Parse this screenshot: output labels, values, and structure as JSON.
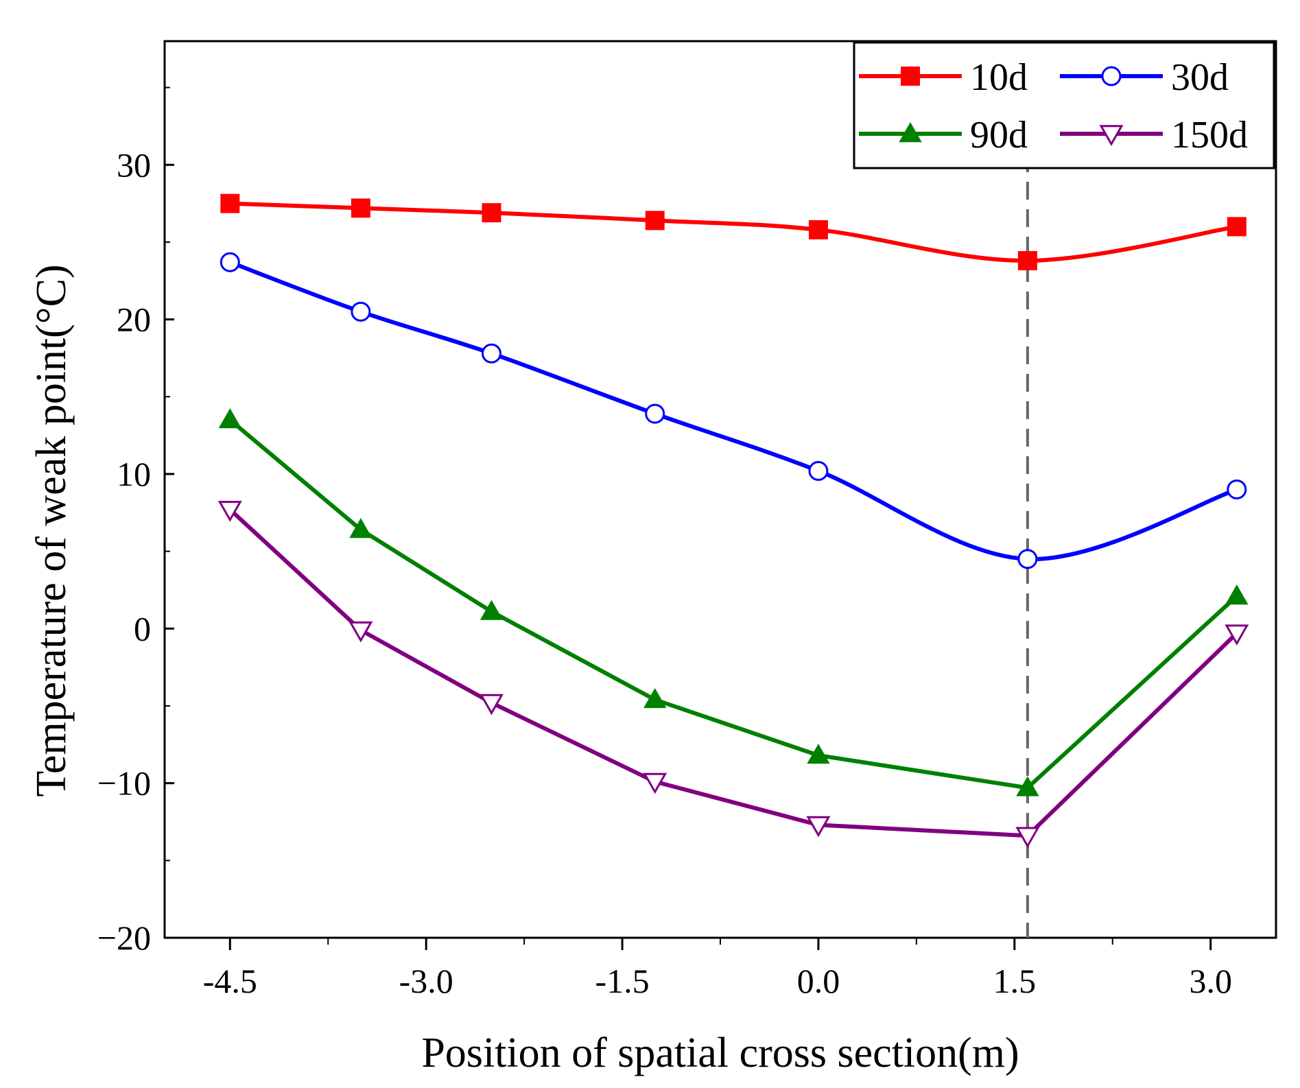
{
  "chart_data": {
    "type": "line",
    "xlabel": "Position of spatial cross section(m)",
    "ylabel": "Temperature of weak point(°C)",
    "xlim": [
      -5.0,
      3.5
    ],
    "ylim": [
      -20,
      38
    ],
    "x_ticks": [
      -4.5,
      -3.0,
      -1.5,
      0.0,
      1.5,
      3.0
    ],
    "x_tick_labels": [
      "-4.5",
      "-3.0",
      "-1.5",
      "0.0",
      "1.5",
      "3.0"
    ],
    "y_ticks": [
      -20,
      -10,
      0,
      10,
      20,
      30
    ],
    "y_tick_labels": [
      "−20",
      "−10",
      "0",
      "10",
      "20",
      "30"
    ],
    "reference_line_x": 1.6,
    "legend_position": "top-right",
    "series": [
      {
        "name": "10d",
        "color": "#ff0000",
        "marker": "filled-square",
        "smooth": true,
        "x": [
          -4.5,
          -3.5,
          -2.5,
          -1.25,
          0.0,
          1.6,
          3.2
        ],
        "values": [
          27.5,
          27.2,
          26.9,
          26.4,
          25.8,
          23.8,
          26.0
        ]
      },
      {
        "name": "30d",
        "color": "#0000ff",
        "marker": "open-circle",
        "smooth": true,
        "x": [
          -4.5,
          -3.5,
          -2.5,
          -1.25,
          0.0,
          1.6,
          3.2
        ],
        "values": [
          23.7,
          20.5,
          17.8,
          13.9,
          10.2,
          4.5,
          9.0
        ]
      },
      {
        "name": "90d",
        "color": "#008000",
        "marker": "filled-triangle-up",
        "smooth": false,
        "x": [
          -4.5,
          -3.5,
          -2.5,
          -1.25,
          0.0,
          1.6,
          3.2
        ],
        "values": [
          13.5,
          6.4,
          1.1,
          -4.6,
          -8.2,
          -10.3,
          2.1
        ]
      },
      {
        "name": "150d",
        "color": "#800080",
        "marker": "open-triangle-down",
        "smooth": false,
        "x": [
          -4.5,
          -3.5,
          -2.5,
          -1.25,
          0.0,
          1.6,
          3.2
        ],
        "values": [
          7.7,
          -0.1,
          -4.8,
          -9.9,
          -12.7,
          -13.4,
          -0.3
        ]
      }
    ]
  }
}
